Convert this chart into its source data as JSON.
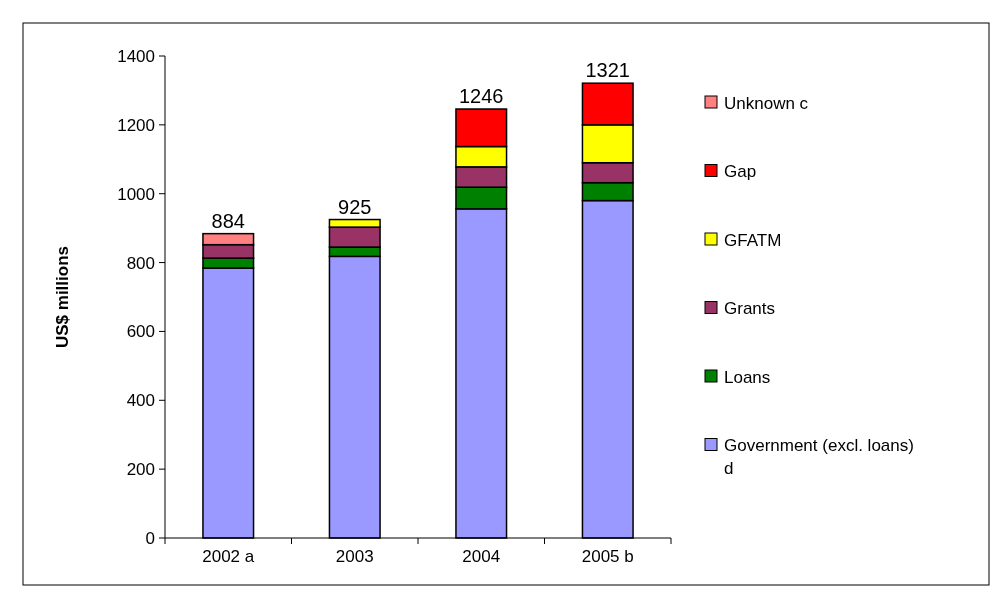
{
  "chart_data": {
    "type": "bar",
    "stacked": true,
    "ylabel": "US$ millions",
    "categories": [
      "2002 a",
      "2003",
      "2004",
      "2005 b"
    ],
    "series": [
      {
        "name": "Government (excl. loans) d",
        "color": "#9999ff",
        "values": [
          784,
          818,
          956,
          980
        ]
      },
      {
        "name": "Loans",
        "color": "#008000",
        "values": [
          29,
          27,
          63,
          52
        ]
      },
      {
        "name": "Grants",
        "color": "#993366",
        "values": [
          39,
          58,
          59,
          58
        ]
      },
      {
        "name": "GFATM",
        "color": "#ffff00",
        "values": [
          null,
          22,
          59,
          110
        ]
      },
      {
        "name": "Gap",
        "color": "#ff0000",
        "values": [
          null,
          null,
          109,
          121
        ]
      },
      {
        "name": "Unknown c",
        "color": "#ff8080",
        "values": [
          32,
          null,
          null,
          null
        ]
      }
    ],
    "totals": [
      "884",
      "925",
      "1246",
      "1321"
    ],
    "ylim": [
      0,
      1400
    ],
    "yticks": [
      0,
      200,
      400,
      600,
      800,
      1000,
      1200,
      1400
    ],
    "grid": false,
    "legend": "right"
  }
}
